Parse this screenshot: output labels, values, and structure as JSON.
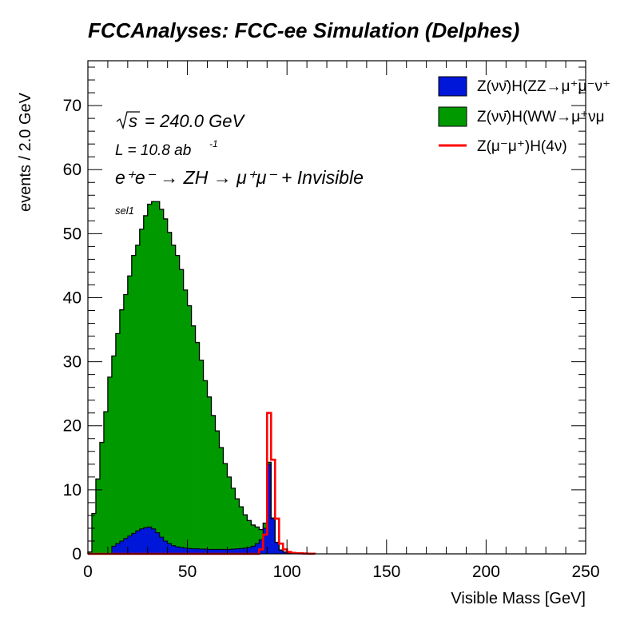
{
  "chart_data": {
    "type": "histogram",
    "title": "FCCAnalyses: FCC-ee Simulation (Delphes)",
    "xlabel": "Visible Mass [GeV]",
    "ylabel": "events / 2.0 GeV",
    "xlim": [
      0,
      250
    ],
    "ylim": [
      0,
      77
    ],
    "bin_width": 2.0,
    "x_ticks": [
      0,
      50,
      100,
      150,
      200,
      250
    ],
    "y_ticks": [
      0,
      10,
      20,
      30,
      40,
      50,
      60,
      70
    ],
    "annotations": {
      "sqrt_s": "= 240.0 GeV",
      "lumi": "L = 10.8 ab",
      "lumi_exp": "-1",
      "process": "e⁺e⁻ → ZH → μ⁺μ⁻ + Invisible",
      "selection": "sel1"
    },
    "legend_position": "top-right",
    "stacked": true,
    "series": [
      {
        "name": "Z(νν̄)H(ZZ→μ⁺μ⁻ν⁺",
        "color": "#0016d8",
        "style": "filled",
        "values": [
          0,
          0,
          0,
          0,
          0,
          0,
          1.2,
          1.6,
          2.0,
          2.4,
          2.8,
          3.2,
          3.6,
          3.9,
          4.1,
          4.2,
          3.9,
          3.3,
          2.6,
          2.0,
          1.6,
          1.3,
          1.1,
          1.0,
          0.9,
          0.85,
          0.8,
          0.8,
          0.75,
          0.75,
          0.7,
          0.7,
          0.7,
          0.7,
          0.7,
          0.7,
          0.75,
          0.8,
          0.85,
          0.9,
          1.0,
          1.2,
          1.6,
          2.2,
          4.0,
          14.0,
          5.5,
          1.8,
          0.6,
          0.3,
          0.15,
          0.08,
          0.05,
          0.03,
          0.02,
          0.01,
          0.01
        ]
      },
      {
        "name": "Z(νν̄)H(WW→μ⁺νμ",
        "color": "#009a00",
        "style": "filled",
        "values": [
          0.3,
          6.3,
          11.7,
          17.4,
          22.2,
          27.6,
          29.7,
          32.8,
          36.1,
          38.1,
          40.6,
          43.4,
          44.6,
          46.8,
          48.7,
          50.4,
          51.1,
          51.7,
          51.2,
          50.3,
          48.6,
          46.9,
          45.5,
          43.4,
          40.3,
          37.9,
          34.8,
          32.2,
          29.5,
          26.3,
          23.8,
          20.9,
          18.5,
          15.9,
          13.4,
          11.3,
          9.5,
          7.8,
          6.5,
          5.2,
          4.2,
          3.3,
          2.6,
          1.6,
          0.8,
          0.3,
          0.1,
          0,
          0,
          0,
          0,
          0,
          0,
          0,
          0,
          0,
          0
        ]
      },
      {
        "name": "Z(μ⁻μ⁺)H(4ν)",
        "color": "#ff0000",
        "style": "line",
        "values": [
          0,
          0,
          0,
          0,
          0,
          0,
          0,
          0,
          0,
          0,
          0,
          0,
          0,
          0,
          0,
          0,
          0,
          0,
          0,
          0,
          0,
          0,
          0,
          0,
          0,
          0,
          0,
          0,
          0,
          0,
          0,
          0,
          0,
          0,
          0,
          0,
          0,
          0,
          0,
          0,
          0,
          0,
          0,
          0.7,
          3.0,
          22.0,
          14.7,
          5.5,
          1.6,
          0.7,
          0.3,
          0.15,
          0.1,
          0.08,
          0.05,
          0.03,
          0.02
        ]
      }
    ]
  }
}
